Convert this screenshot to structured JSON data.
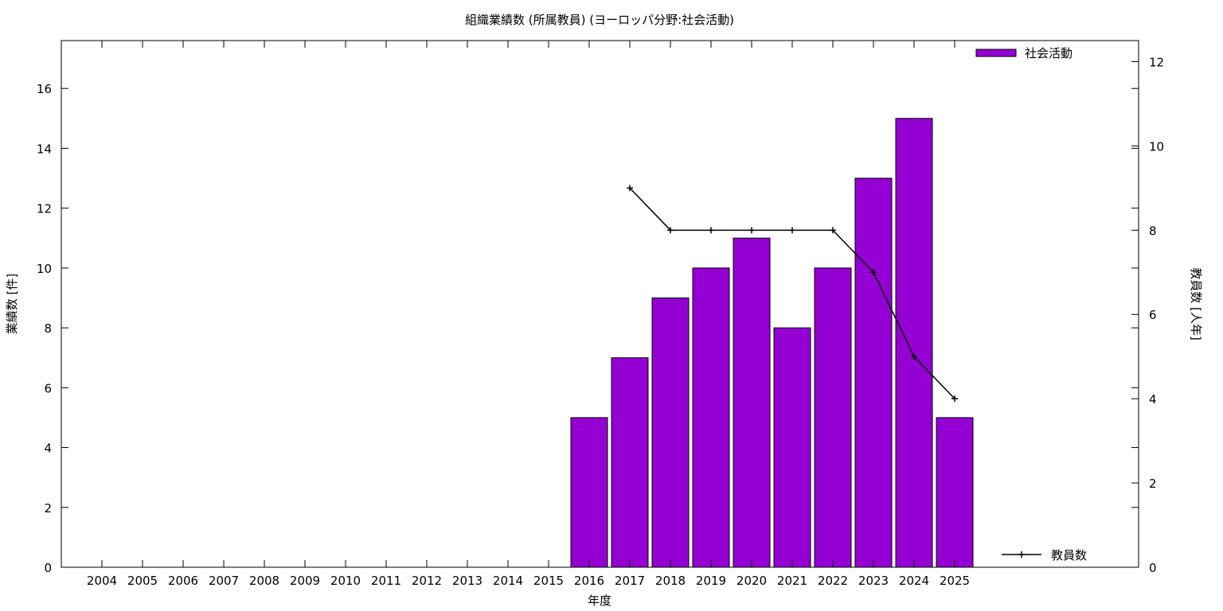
{
  "chart_data": {
    "type": "bar",
    "title": "組織業績数 (所属教員) (ヨーロッパ分野:社会活動)",
    "xlabel": "年度",
    "ylabel": "業績数 [件]",
    "y2label": "教員数 [人年]",
    "categories": [
      "2004",
      "2005",
      "2006",
      "2007",
      "2008",
      "2009",
      "2010",
      "2011",
      "2012",
      "2013",
      "2014",
      "2015",
      "2016",
      "2017",
      "2018",
      "2019",
      "2020",
      "2021",
      "2022",
      "2023",
      "2024",
      "2025"
    ],
    "series": [
      {
        "name": "社会活動",
        "type": "bar",
        "axis": "left",
        "color": "#9400d3",
        "values": [
          null,
          null,
          null,
          null,
          null,
          null,
          null,
          null,
          null,
          null,
          null,
          null,
          5,
          7,
          9,
          10,
          11,
          8,
          10,
          13,
          15,
          5
        ]
      },
      {
        "name": "教員数",
        "type": "line",
        "axis": "right",
        "color": "#000000",
        "marker": "plus",
        "values": [
          null,
          null,
          null,
          null,
          null,
          null,
          null,
          null,
          null,
          null,
          null,
          null,
          null,
          9,
          8,
          8,
          8,
          8,
          8,
          7,
          5,
          4
        ]
      }
    ],
    "ylim": [
      0,
      17.6
    ],
    "y2lim": [
      0,
      12.5
    ],
    "yticks": [
      0,
      2,
      4,
      6,
      8,
      10,
      12,
      14,
      16
    ],
    "y2ticks": [
      0,
      2,
      4,
      6,
      8,
      10,
      12
    ],
    "legend": {
      "bar": "top-right",
      "line": "bottom-right"
    },
    "grid": false
  }
}
